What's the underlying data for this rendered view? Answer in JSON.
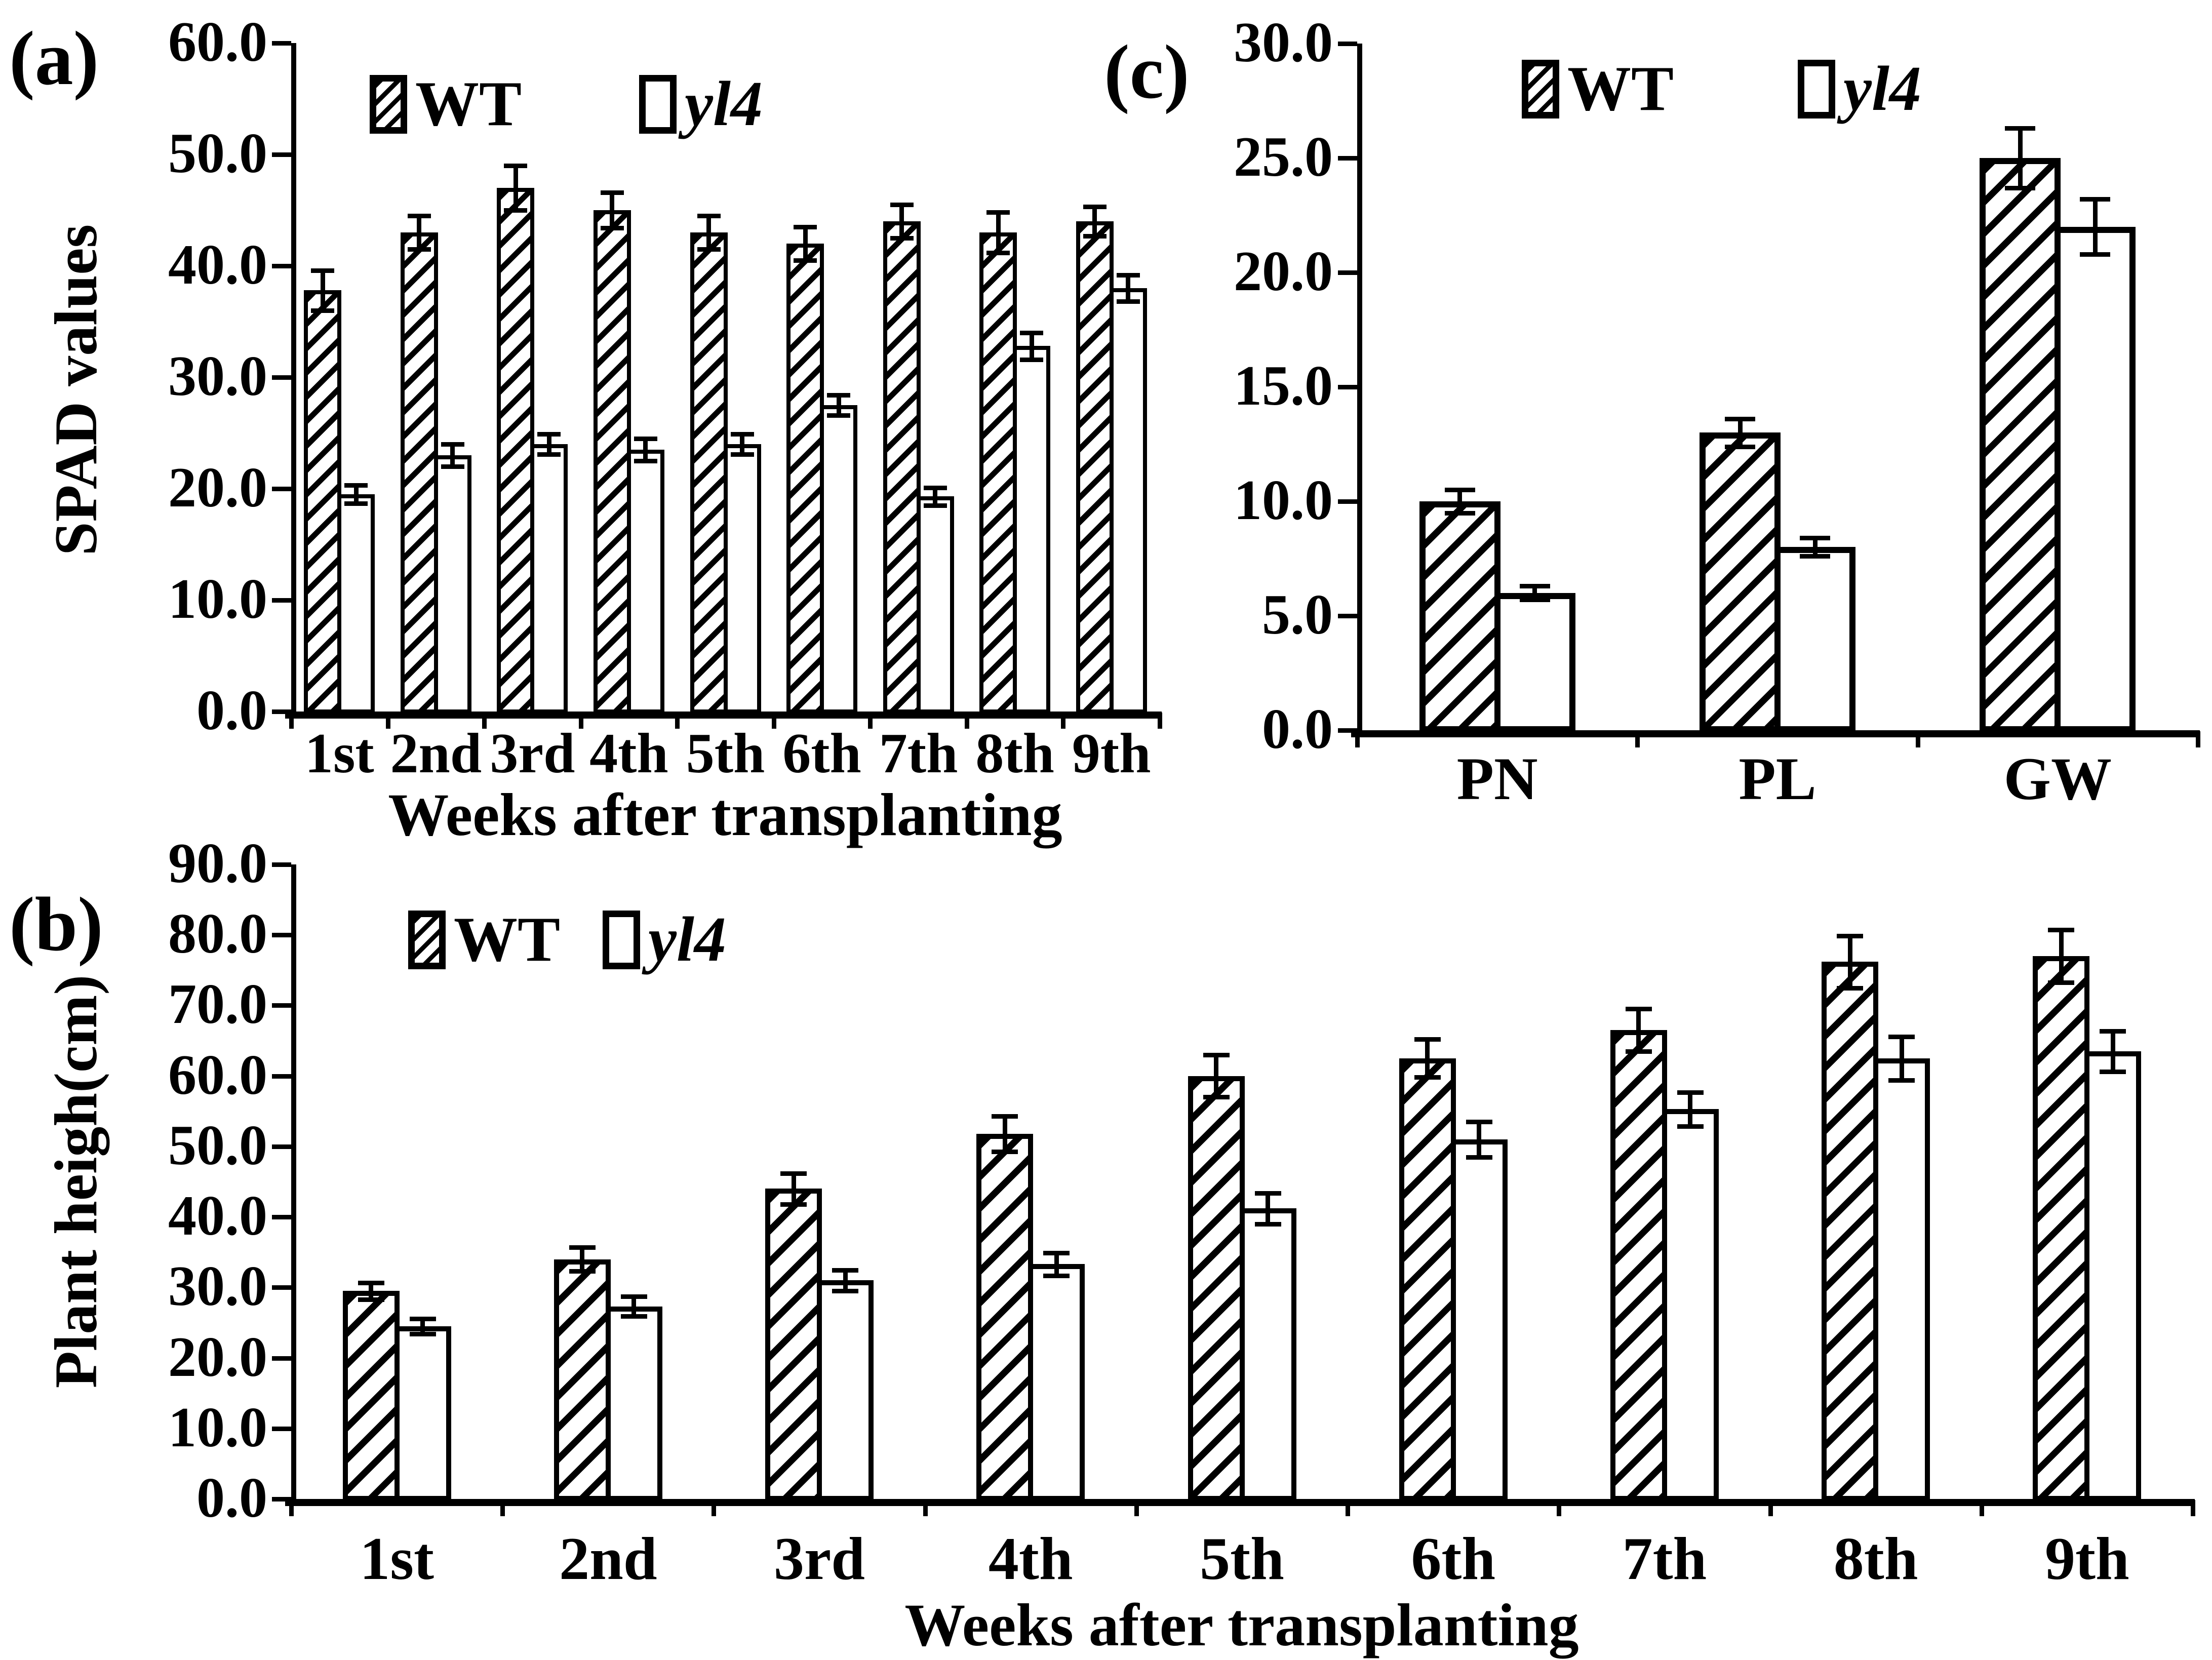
{
  "figure": {
    "background_color": "#ffffff",
    "ink_color": "#000000",
    "description_texts": {
      "panel_a_label": "(a)",
      "panel_b_label": "(b)",
      "panel_c_label": "(c)"
    }
  },
  "chart_data": [
    {
      "id": "a",
      "type": "bar",
      "panel_label": "(a)",
      "title": "",
      "xlabel": "Weeks after transplanting",
      "ylabel": "SPAD values",
      "ylim": [
        0,
        60
      ],
      "y_step": 10,
      "y_tick_labels": [
        "0.0",
        "10.0",
        "20.0",
        "30.0",
        "40.0",
        "50.0",
        "60.0"
      ],
      "grid": false,
      "legend_position": "top-inside-left",
      "categories": [
        "1st",
        "2nd",
        "3rd",
        "4th",
        "5th",
        "6th",
        "7th",
        "8th",
        "9th"
      ],
      "series": [
        {
          "name": "WT",
          "swatch": "hatched",
          "values": [
            37.8,
            43.0,
            47.0,
            45.0,
            43.0,
            42.0,
            44.0,
            43.0,
            44.0
          ],
          "errors": [
            1.8,
            1.5,
            2.0,
            1.6,
            1.5,
            1.5,
            1.5,
            1.8,
            1.3
          ]
        },
        {
          "name": "yl4",
          "swatch": "open",
          "italic": true,
          "values": [
            19.5,
            23.0,
            24.0,
            23.5,
            24.0,
            27.5,
            19.3,
            32.8,
            38.0
          ],
          "errors": [
            0.8,
            1.0,
            0.9,
            1.0,
            0.9,
            0.9,
            0.8,
            1.2,
            1.2
          ]
        }
      ]
    },
    {
      "id": "b",
      "type": "bar",
      "panel_label": "(b)",
      "title": "",
      "xlabel": "Weeks after transplanting",
      "ylabel": "Plant heigh(cm)",
      "ylim": [
        0,
        90
      ],
      "y_step": 10,
      "y_tick_labels": [
        "0.0",
        "10.0",
        "20.0",
        "30.0",
        "40.0",
        "50.0",
        "60.0",
        "70.0",
        "80.0",
        "90.0"
      ],
      "grid": false,
      "legend_position": "top-inside-left",
      "categories": [
        "1st",
        "2nd",
        "3rd",
        "4th",
        "5th",
        "6th",
        "7th",
        "8th",
        "9th"
      ],
      "series": [
        {
          "name": "WT",
          "swatch": "hatched",
          "values": [
            29.5,
            34.0,
            44.0,
            51.8,
            60.0,
            62.5,
            66.5,
            76.2,
            77.0
          ],
          "errors": [
            1.2,
            1.7,
            2.2,
            2.5,
            3.0,
            2.7,
            3.0,
            3.7,
            3.7
          ]
        },
        {
          "name": "yl4",
          "swatch": "open",
          "italic": true,
          "values": [
            24.5,
            27.3,
            31.0,
            33.3,
            41.2,
            51.0,
            55.3,
            62.5,
            63.5
          ],
          "errors": [
            1.1,
            1.4,
            1.5,
            1.6,
            2.2,
            2.5,
            2.4,
            3.1,
            2.9
          ]
        }
      ]
    },
    {
      "id": "c",
      "type": "bar",
      "panel_label": "(c)",
      "title": "",
      "xlabel": "",
      "ylabel": "",
      "ylim": [
        0,
        30
      ],
      "y_step": 5,
      "y_tick_labels": [
        "0.0",
        "5.0",
        "10.0",
        "15.0",
        "20.0",
        "25.0",
        "30.0"
      ],
      "grid": false,
      "legend_position": "top-inside",
      "categories": [
        "PN",
        "PL",
        "GW"
      ],
      "series": [
        {
          "name": "WT",
          "swatch": "hatched",
          "values": [
            10.0,
            13.0,
            25.0
          ],
          "errors": [
            0.5,
            0.6,
            1.3
          ]
        },
        {
          "name": "yl4",
          "swatch": "open",
          "italic": true,
          "values": [
            6.0,
            8.0,
            22.0
          ],
          "errors": [
            0.3,
            0.4,
            1.2
          ]
        }
      ]
    }
  ]
}
